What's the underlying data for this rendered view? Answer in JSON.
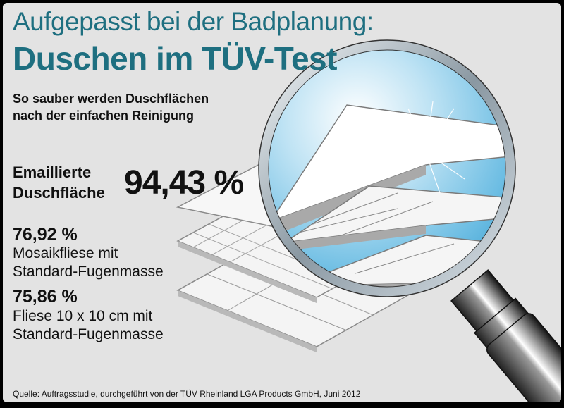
{
  "title_line1": "Aufgepasst bei der Badplanung:",
  "title_line2": "Duschen im TÜV-Test",
  "subtitle_line1": "So sauber werden Duschflächen",
  "subtitle_line2": "nach der einfachen Reinigung",
  "source": "Quelle: Auftragsstudie, durchgeführt von der TÜV Rheinland LGA Products GmbH, Juni 2012",
  "colors": {
    "title": "#1e6f80",
    "lens": "#58b4de",
    "background": "#e3e3e3"
  },
  "chart_data": {
    "type": "table",
    "title": "Duschen im TÜV-Test",
    "unit": "%",
    "items": [
      {
        "label_line1": "Emaillierte",
        "label_line2": "Duschfläche",
        "value": 94.43,
        "display": "94,43 %"
      },
      {
        "label_line1": "Mosaikfliese mit",
        "label_line2": "Standard-Fugenmasse",
        "value": 76.92,
        "display": "76,92 %"
      },
      {
        "label_line1": "Fliese 10 x 10 cm mit",
        "label_line2": "Standard-Fugenmasse",
        "value": 75.86,
        "display": "75,86 %"
      }
    ]
  }
}
